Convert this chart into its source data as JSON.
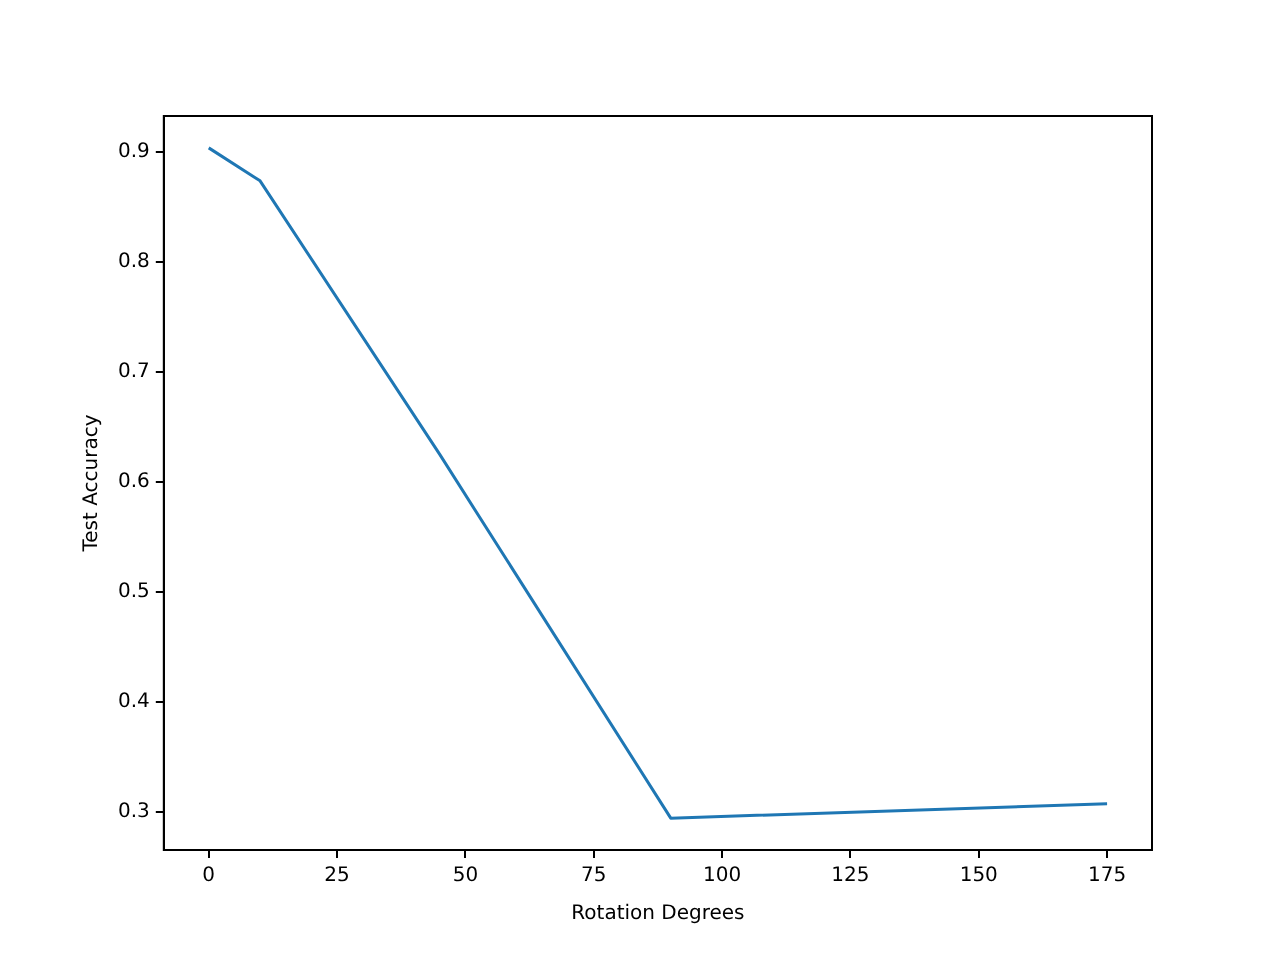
{
  "chart_data": {
    "type": "line",
    "xlabel": "Rotation Degrees",
    "ylabel": "Test Accuracy",
    "x": [
      0,
      10,
      45,
      90,
      175
    ],
    "series": [
      {
        "color": "#1f77b4",
        "values": [
          0.904,
          0.874,
          0.625,
          0.294,
          0.307
        ]
      }
    ],
    "xlim": [
      -8.75,
      183.75
    ],
    "xticks": [
      0,
      25,
      50,
      75,
      100,
      125,
      150,
      175
    ],
    "ylim": [
      0.265,
      0.933
    ],
    "yticks": [
      {
        "value": 0.3,
        "label": "0.3"
      },
      {
        "value": 0.4,
        "label": "0.4"
      },
      {
        "value": 0.5,
        "label": "0.5"
      },
      {
        "value": 0.6,
        "label": "0.6"
      },
      {
        "value": 0.7,
        "label": "0.7"
      },
      {
        "value": 0.8,
        "label": "0.8"
      },
      {
        "value": 0.9,
        "label": "0.9"
      }
    ],
    "grid": false,
    "legend": false,
    "marker": "none",
    "line_style": "solid"
  }
}
